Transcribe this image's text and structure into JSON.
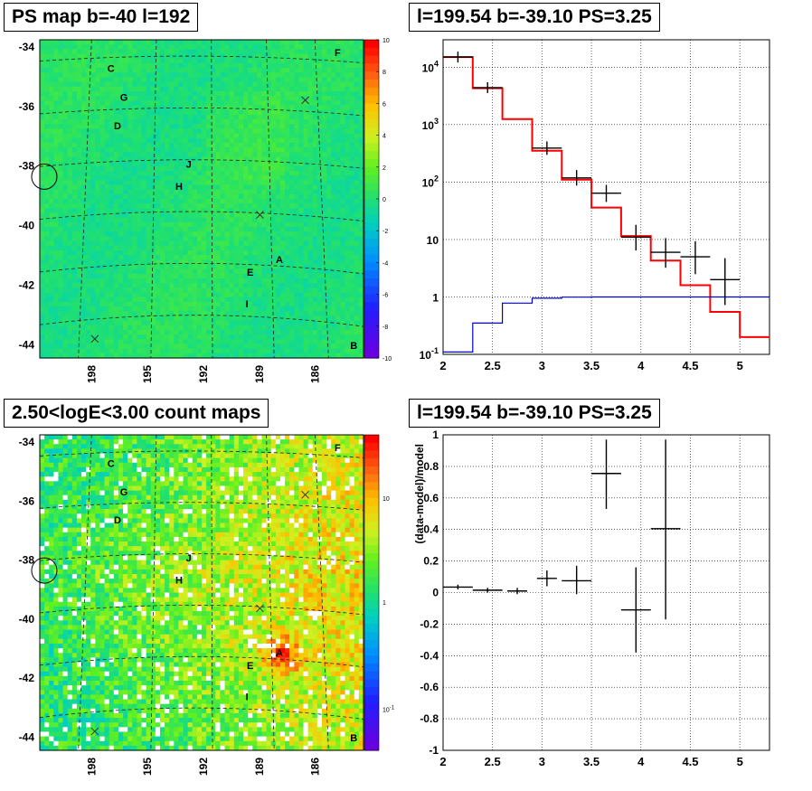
{
  "panels": {
    "tl": {
      "title": "PS map b=-40 l=192"
    },
    "tr": {
      "title": "l=199.54 b=-39.10 PS=3.25"
    },
    "bl": {
      "title": "2.50<logE<3.00 count maps"
    },
    "br": {
      "title": "l=199.54 b=-39.10 PS=3.25"
    }
  },
  "chart_data": [
    {
      "type": "heatmap",
      "title": "PS map b=-40 l=192",
      "x_ticks": [
        "198",
        "195",
        "192",
        "189",
        "186"
      ],
      "y_ticks": [
        "-34",
        "-36",
        "-38",
        "-40",
        "-42",
        "-44"
      ],
      "colorbar": {
        "ticks": [
          "10",
          "8",
          "6",
          "4",
          "2",
          "0",
          "-2",
          "-4",
          "-6",
          "-8",
          "-10"
        ],
        "range": [
          -10,
          10
        ]
      },
      "sources": [
        "C",
        "G",
        "D",
        "J",
        "H",
        "E",
        "A",
        "I",
        "F",
        "B"
      ],
      "background_value": 0.5,
      "colors": {
        "map": "#25e050"
      }
    },
    {
      "type": "line",
      "title": "l=199.54 b=-39.10 PS=3.25",
      "x_ticks": [
        "2",
        "2.5",
        "3",
        "3.5",
        "4",
        "4.5",
        "5"
      ],
      "y_ticks": [
        "10^-1",
        "1",
        "10",
        "10^2",
        "10^3",
        "10^4"
      ],
      "xlim": [
        2,
        5.3
      ],
      "ylim": [
        0.1,
        30000
      ],
      "yscale": "log",
      "grid": true,
      "series": [
        {
          "style": "step",
          "color": "#ff0000",
          "edges": [
            2,
            2.3,
            2.6,
            2.9,
            3.2,
            3.5,
            3.8,
            4.1,
            4.4,
            4.7,
            5.0,
            5.3
          ],
          "values": [
            15000,
            4300,
            1250,
            350,
            110,
            36,
            11.5,
            4.3,
            1.6,
            0.55,
            0.2
          ]
        },
        {
          "style": "step",
          "color": "#0000cc",
          "edges": [
            2,
            2.3,
            2.6,
            2.9,
            3.2,
            3.5,
            3.8,
            4.1,
            4.4,
            4.7,
            5.0,
            5.3
          ],
          "values": [
            0.11,
            0.35,
            0.78,
            0.95,
            0.99,
            1,
            1,
            1,
            1,
            1,
            1
          ]
        },
        {
          "style": "points",
          "color": "#000000",
          "points": [
            {
              "x": 2.15,
              "xerr": 0.15,
              "y": 15000,
              "ylo": 15000,
              "yhi": 15000
            },
            {
              "x": 2.45,
              "xerr": 0.15,
              "y": 4400,
              "ylo": 4400,
              "yhi": 4400
            },
            {
              "x": 3.05,
              "xerr": 0.15,
              "y": 390,
              "ylo": 370,
              "yhi": 410
            },
            {
              "x": 3.35,
              "xerr": 0.15,
              "y": 118,
              "ylo": 108,
              "yhi": 130
            },
            {
              "x": 3.65,
              "xerr": 0.15,
              "y": 64,
              "ylo": 56,
              "yhi": 72
            },
            {
              "x": 3.95,
              "xerr": 0.15,
              "y": 11,
              "ylo": 8,
              "yhi": 14.5
            },
            {
              "x": 4.25,
              "xerr": 0.15,
              "y": 6,
              "ylo": 4,
              "yhi": 8.5
            },
            {
              "x": 4.55,
              "xerr": 0.15,
              "y": 5,
              "ylo": 3.1,
              "yhi": 7.5
            },
            {
              "x": 4.85,
              "xerr": 0.15,
              "y": 2,
              "ylo": 0.9,
              "yhi": 3.8
            }
          ]
        }
      ]
    },
    {
      "type": "heatmap",
      "title": "2.50<logE<3.00 count maps",
      "x_ticks": [
        "198",
        "195",
        "192",
        "189",
        "186"
      ],
      "y_ticks": [
        "-34",
        "-36",
        "-38",
        "-40",
        "-42",
        "-44"
      ],
      "colorbar": {
        "ticks": [
          "10",
          "1",
          "10^-1"
        ],
        "scale": "log"
      },
      "sources": [
        "C",
        "G",
        "D",
        "J",
        "H",
        "E",
        "A",
        "I",
        "F",
        "B"
      ],
      "colors": {
        "low": "#8fdc3c",
        "high": "#f08030"
      }
    },
    {
      "type": "scatter",
      "title": "l=199.54 b=-39.10 PS=3.25",
      "ylabel": "(data-model)/model",
      "x_ticks": [
        "2",
        "2.5",
        "3",
        "3.5",
        "4",
        "4.5",
        "5"
      ],
      "y_ticks": [
        "1",
        "0.8",
        "0.6",
        "0.4",
        "0.2",
        "0",
        "-0.2",
        "-0.4",
        "-0.6",
        "-0.8",
        "-1"
      ],
      "xlim": [
        2,
        5.3
      ],
      "ylim": [
        -1,
        1
      ],
      "grid": true,
      "points": [
        {
          "x": 2.15,
          "xerr": 0.15,
          "y": 0.035,
          "ylo": 0.02,
          "yhi": 0.05
        },
        {
          "x": 2.45,
          "xerr": 0.15,
          "y": 0.015,
          "ylo": 0.0,
          "yhi": 0.03
        },
        {
          "x": 2.75,
          "xerr": 0.1,
          "y": 0.01,
          "ylo": -0.01,
          "yhi": 0.03
        },
        {
          "x": 3.05,
          "xerr": 0.1,
          "y": 0.09,
          "ylo": 0.04,
          "yhi": 0.14
        },
        {
          "x": 3.35,
          "xerr": 0.15,
          "y": 0.075,
          "ylo": -0.01,
          "yhi": 0.17
        },
        {
          "x": 3.65,
          "xerr": 0.15,
          "y": 0.755,
          "ylo": 0.53,
          "yhi": 0.97
        },
        {
          "x": 3.95,
          "xerr": 0.15,
          "y": -0.11,
          "ylo": -0.38,
          "yhi": 0.16
        },
        {
          "x": 4.25,
          "xerr": 0.15,
          "y": 0.405,
          "ylo": -0.17,
          "yhi": 0.97
        }
      ]
    }
  ]
}
